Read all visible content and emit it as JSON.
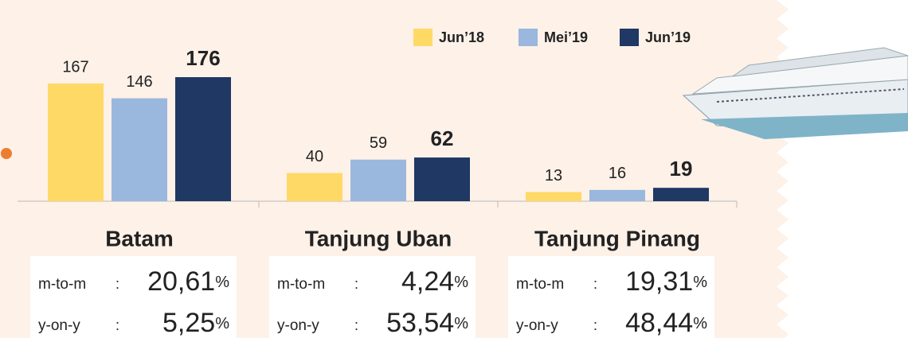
{
  "chart_data": {
    "type": "bar",
    "categories": [
      "Batam",
      "Tanjung Uban",
      "Tanjung Pinang"
    ],
    "series": [
      {
        "name": "Jun’18",
        "color": "#ffd966",
        "values": [
          167,
          40,
          13
        ]
      },
      {
        "name": "Mei’19",
        "color": "#9ab7dd",
        "values": [
          146,
          59,
          16
        ]
      },
      {
        "name": "Jun’19",
        "color": "#1f3864",
        "values": [
          176,
          62,
          19
        ]
      }
    ],
    "legend": "top-right"
  },
  "panels": [
    {
      "rows": [
        {
          "label": "m-to-m",
          "sep": ":",
          "value": "20,61",
          "unit": "%"
        },
        {
          "label": "y-on-y",
          "sep": ":",
          "value": "5,25",
          "unit": "%"
        }
      ]
    },
    {
      "rows": [
        {
          "label": "m-to-m",
          "sep": ":",
          "value": "4,24",
          "unit": "%"
        },
        {
          "label": "y-on-y",
          "sep": ":",
          "value": "53,54",
          "unit": "%"
        }
      ]
    },
    {
      "rows": [
        {
          "label": "m-to-m",
          "sep": ":",
          "value": "19,31",
          "unit": "%"
        },
        {
          "label": "y-on-y",
          "sep": ":",
          "value": "48,44",
          "unit": "%"
        }
      ]
    }
  ]
}
